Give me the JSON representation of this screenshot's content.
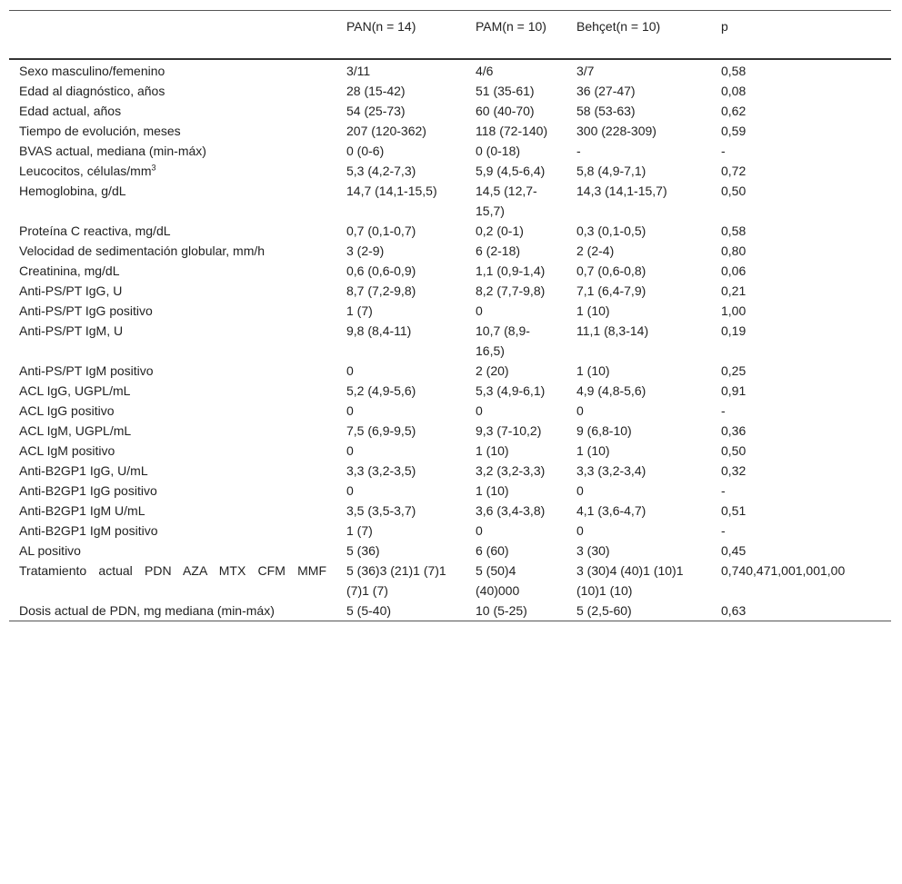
{
  "table": {
    "header": [
      "",
      "PAN(n = 14)",
      "PAM(n = 10)",
      "Behçet(n = 10)",
      "p"
    ],
    "rows": [
      [
        "Sexo masculino/femenino",
        "3/11",
        "4/6",
        "3/7",
        "0,58"
      ],
      [
        "Edad al diagnóstico, años",
        "28 (15-42)",
        "51 (35-61)",
        "36 (27-47)",
        "0,08"
      ],
      [
        "Edad actual, años",
        "54 (25-73)",
        "60 (40-70)",
        "58 (53-63)",
        "0,62"
      ],
      [
        "Tiempo de evolución, meses",
        "207 (120-362)",
        "118 (72-140)",
        "300 (228-309)",
        "0,59"
      ],
      [
        "BVAS actual, mediana (min-máx)",
        "0 (0-6)",
        "0 (0-18)",
        "-",
        "-"
      ],
      [
        {
          "text": "Leucocitos, células/mm",
          "sup": "3"
        },
        "5,3 (4,2-7,3)",
        "5,9 (4,5-6,4)",
        "5,8 (4,9-7,1)",
        "0,72"
      ],
      [
        "Hemoglobina, g/dL",
        "14,7 (14,1-15,5)",
        "14,5 (12,7-15,7)",
        "14,3 (14,1-15,7)",
        "0,50"
      ],
      [
        "Proteína C reactiva, mg/dL",
        "0,7 (0,1-0,7)",
        "0,2 (0-1)",
        "0,3 (0,1-0,5)",
        "0,58"
      ],
      [
        "Velocidad de sedimentación globular, mm/h",
        "3 (2-9)",
        "6 (2-18)",
        "2 (2-4)",
        "0,80"
      ],
      [
        "Creatinina, mg/dL",
        "0,6 (0,6-0,9)",
        "1,1 (0,9-1,4)",
        "0,7 (0,6-0,8)",
        "0,06"
      ],
      [
        "Anti-PS/PT IgG, U",
        "8,7 (7,2-9,8)",
        "8,2 (7,7-9,8)",
        "7,1 (6,4-7,9)",
        "0,21"
      ],
      [
        "Anti-PS/PT IgG positivo",
        "1 (7)",
        "0",
        "1 (10)",
        "1,00"
      ],
      [
        "Anti-PS/PT IgM, U",
        "9,8 (8,4-11)",
        "10,7 (8,9-16,5)",
        "11,1 (8,3-14)",
        "0,19"
      ],
      [
        "Anti-PS/PT IgM positivo",
        "0",
        "2 (20)",
        "1 (10)",
        "0,25"
      ],
      [
        "ACL IgG, UGPL/mL",
        "5,2 (4,9-5,6)",
        "5,3 (4,9-6,1)",
        "4,9 (4,8-5,6)",
        "0,91"
      ],
      [
        "ACL IgG positivo",
        "0",
        "0",
        "0",
        "-"
      ],
      [
        "ACL IgM, UGPL/mL",
        "7,5 (6,9-9,5)",
        "9,3 (7-10,2)",
        "9 (6,8-10)",
        "0,36"
      ],
      [
        "ACL IgM positivo",
        "0",
        "1 (10)",
        "1 (10)",
        "0,50"
      ],
      [
        "Anti-B2GP1 IgG, U/mL",
        "3,3 (3,2-3,5)",
        "3,2 (3,2-3,3)",
        "3,3 (3,2-3,4)",
        "0,32"
      ],
      [
        "Anti-B2GP1 IgG positivo",
        "0",
        "1 (10)",
        "0",
        "-"
      ],
      [
        "Anti-B2GP1 IgM U/mL",
        "3,5 (3,5-3,7)",
        "3,6 (3,4-3,8)",
        "4,1 (3,6-4,7)",
        "0,51"
      ],
      [
        "Anti-B2GP1 IgM positivo",
        "1 (7)",
        "0",
        "0",
        "-"
      ],
      [
        "AL positivo",
        "5 (36)",
        "6 (60)",
        "3 (30)",
        "0,45"
      ],
      [
        "Tratamiento actual PDN AZA MTX CFM MMF",
        "5 (36)3 (21)1 (7)1 (7)1 (7)",
        "5 (50)4 (40)000",
        "3 (30)4 (40)1 (10)1 (10)1 (10)",
        "0,740,471,001,001,00"
      ],
      [
        "Dosis actual de PDN, mg mediana (min-máx)",
        "5 (5-40)",
        "10 (5-25)",
        "5 (2,5-60)",
        "0,63"
      ]
    ]
  }
}
